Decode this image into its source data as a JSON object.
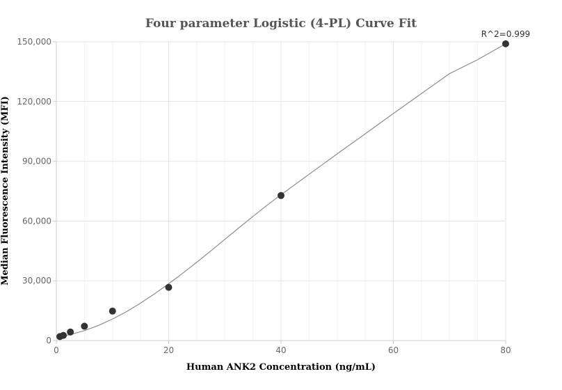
{
  "chart_data": {
    "type": "scatter",
    "title": "Four parameter Logistic (4-PL) Curve Fit",
    "xlabel": "Human ANK2 Concentration (ng/mL)",
    "ylabel": "Median Fluorescence Intensity (MFI)",
    "xlim": [
      0,
      80
    ],
    "ylim": [
      0,
      150000
    ],
    "x_ticks": [
      0,
      20,
      40,
      60,
      80
    ],
    "y_ticks": [
      0,
      30000,
      60000,
      90000,
      120000,
      150000
    ],
    "x_tick_labels": [
      "0",
      "20",
      "40",
      "60",
      "80"
    ],
    "y_tick_labels": [
      "0",
      "30,000",
      "60,000",
      "90,000",
      "120,000",
      "150,000"
    ],
    "grid": true,
    "legend": false,
    "points": {
      "x": [
        0.625,
        1.25,
        2.5,
        5,
        10,
        20,
        40,
        80
      ],
      "y": [
        2000,
        2600,
        4300,
        7200,
        14800,
        26700,
        72800,
        149000
      ]
    },
    "fit_curve": {
      "x": [
        0,
        2.5,
        5,
        7.5,
        10,
        12.5,
        15,
        17.5,
        20,
        22.5,
        25,
        27.5,
        30,
        32.5,
        35,
        37.5,
        40,
        45,
        50,
        55,
        60,
        65,
        70,
        75,
        80
      ],
      "y": [
        1700,
        3000,
        5000,
        7600,
        10800,
        14500,
        18800,
        23500,
        28500,
        33800,
        39300,
        45000,
        50800,
        56600,
        62300,
        67900,
        73200,
        83500,
        93700,
        103800,
        114000,
        124000,
        134000,
        141000,
        149000
      ]
    },
    "annotation": "R^2=0.999",
    "colors": {
      "points": "#333333",
      "curve": "#8c8c8c",
      "title": "#555555",
      "grid": "#e3e3e3"
    }
  }
}
